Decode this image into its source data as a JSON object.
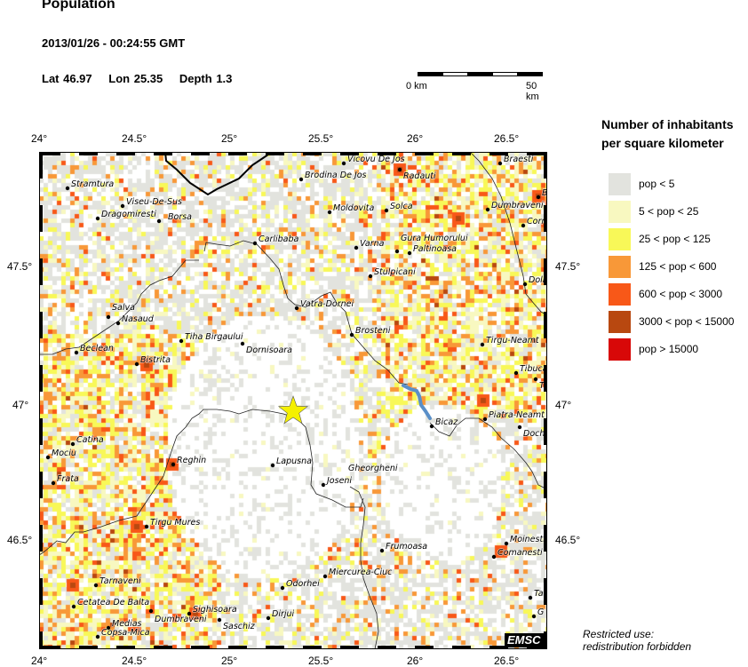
{
  "header": {
    "title": "Population",
    "datetime": "2013/01/26 - 00:24:55 GMT",
    "lat": "Lat 46.97",
    "lon": "Lon  25.35",
    "depth": "Depth  1.3"
  },
  "scale_bar": {
    "start_label": "0 km",
    "end_label": "50 km"
  },
  "axes": {
    "lon_ticks": [
      "24°",
      "24.5°",
      "25°",
      "25.5°",
      "26°",
      "26.5°"
    ],
    "lat_ticks": [
      "47.5°",
      "47°",
      "46.5°"
    ]
  },
  "epicenter": {
    "lat": 46.97,
    "lon": 25.35,
    "marker": "star",
    "color": "#f5f000"
  },
  "cities": [
    "Stramtura",
    "Viseu-De-Sus",
    "Dragomiresti",
    "Borsa",
    "Carlibaba",
    "Salva",
    "Nasaud",
    "Beclean",
    "Bistrita",
    "Tiha Birgaului",
    "Dornisoara",
    "Vicovu De Jos",
    "Radauti",
    "Brodina De Jos",
    "Braesti",
    "B",
    "Moldovita",
    "Solca",
    "Dumbraveni",
    "Corn",
    "Varna",
    "Gura Humorului",
    "Paltinoasa",
    "Stulpicani",
    "Dolh",
    "Vatra-Dornei",
    "Brosteni",
    "Tirgu-Neamt",
    "Tibuca",
    "Tu",
    "Bicaz",
    "Piatra-Neamt",
    "Doch",
    "Catina",
    "Mociu",
    "Reghin",
    "Frata",
    "Lapusna",
    "Joseni",
    "Gheorgheni",
    "Tirgu Mures",
    "Frumoasa",
    "Moinesti",
    "Comanesti",
    "Miercurea-Ciuc",
    "Tarnaveni",
    "Odorhei",
    "Tar",
    "Cetatea De Balta",
    "Dumbraveni",
    "Sighisoara",
    "Saschiz",
    "Dirjui",
    "Medias",
    "Copsa-Mica",
    "G"
  ],
  "legend": {
    "title_line1": "Number of inhabitants",
    "title_line2": "per square kilometer",
    "items": [
      {
        "label": "pop < 5",
        "color": "#e2e3de"
      },
      {
        "label": "5 < pop < 25",
        "color": "#f8f8c0"
      },
      {
        "label": "25 < pop < 125",
        "color": "#f8f858"
      },
      {
        "label": "125 < pop < 600",
        "color": "#f89838"
      },
      {
        "label": "600 < pop < 3000",
        "color": "#f85818"
      },
      {
        "label": "3000 < pop < 15000",
        "color": "#b84810"
      },
      {
        "label": "pop > 15000",
        "color": "#d80808"
      }
    ]
  },
  "footer": {
    "restricted_line1": "Restricted use:",
    "restricted_line2": "redistribution forbidden",
    "logo": "EMSC"
  }
}
